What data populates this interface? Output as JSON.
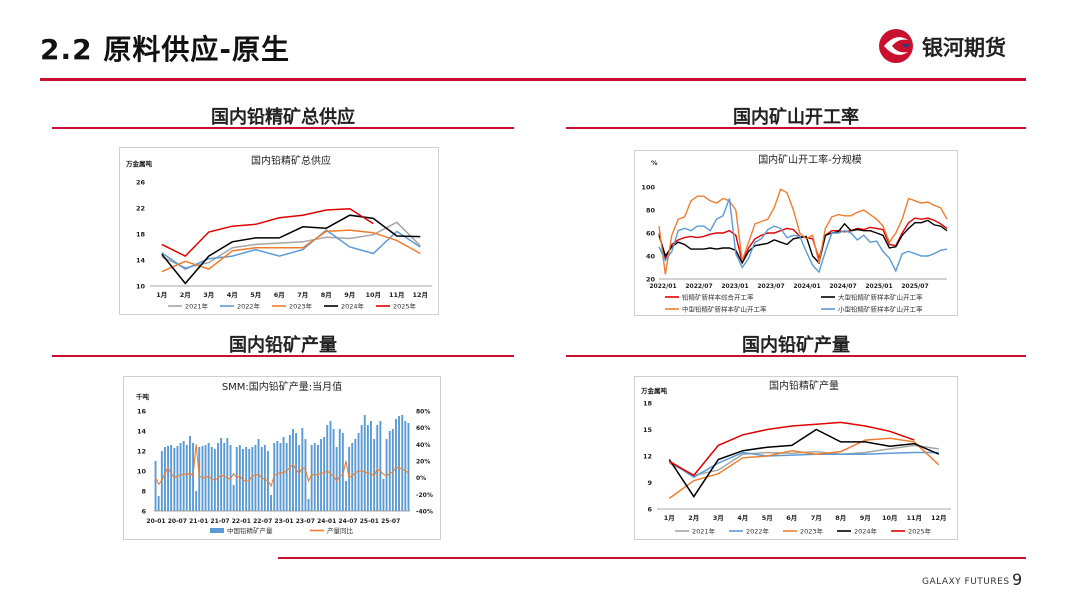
{
  "header": {
    "title": "2.2 原料供应-原生",
    "brand": "银河期货"
  },
  "panels": {
    "p1": {
      "title": "国内铅精矿总供应"
    },
    "p2": {
      "title": "国内矿山开工率"
    },
    "p3": {
      "title": "国内铅矿产量"
    },
    "p4": {
      "title": "国内铅矿产量"
    }
  },
  "footer": {
    "brand": "GALAXY FUTURES",
    "page": "9"
  },
  "chart_data": [
    {
      "id": "c1",
      "type": "line",
      "title": "国内铅精矿总供应",
      "ylabel": "万金属吨",
      "ylim": [
        10,
        26
      ],
      "yticks": [
        10,
        14,
        18,
        22,
        26
      ],
      "categories": [
        "1月",
        "2月",
        "3月",
        "4月",
        "5月",
        "6月",
        "7月",
        "8月",
        "9月",
        "10月",
        "11月",
        "12月"
      ],
      "series": [
        {
          "name": "2021年",
          "color": "#a6a6a6",
          "values": [
            14.5,
            12.8,
            13.6,
            15.9,
            16.4,
            16.6,
            16.8,
            17.5,
            17.3,
            17.9,
            19.8,
            16.2
          ]
        },
        {
          "name": "2022年",
          "color": "#5b9bd5",
          "values": [
            15.1,
            12.6,
            14.2,
            14.6,
            15.6,
            14.6,
            15.6,
            18.6,
            16.0,
            15.0,
            18.4,
            16.0
          ]
        },
        {
          "name": "2023年",
          "color": "#ed7d31",
          "values": [
            12.2,
            13.8,
            12.6,
            15.4,
            15.9,
            15.9,
            15.9,
            18.4,
            18.6,
            18.2,
            17.0,
            15.0
          ]
        },
        {
          "name": "2024年",
          "color": "#000000",
          "values": [
            14.9,
            10.4,
            14.6,
            16.8,
            17.4,
            17.4,
            19.1,
            18.9,
            20.9,
            20.4,
            17.7,
            17.6
          ]
        },
        {
          "name": "2025年",
          "color": "#e00000",
          "values": [
            16.4,
            14.6,
            18.3,
            19.2,
            19.5,
            20.5,
            20.9,
            21.7,
            21.9,
            19.6,
            null,
            null
          ]
        }
      ]
    },
    {
      "id": "c2",
      "type": "line",
      "title": "国内矿山开工率-分规模",
      "ylabel": "%",
      "ylim": [
        20,
        100
      ],
      "yticks": [
        20,
        40,
        60,
        80,
        100
      ],
      "xticks": [
        "2022/01",
        "2022/07",
        "2023/01",
        "2023/07",
        "2024/01",
        "2024/07",
        "2025/01",
        "2025/07"
      ],
      "series": [
        {
          "name": "铅精矿新样本综合开工率",
          "color": "#e00000",
          "values": [
            60,
            38,
            50,
            54,
            56,
            57,
            56,
            57,
            59,
            60,
            60,
            62,
            58,
            35,
            47,
            55,
            58,
            60,
            60,
            62,
            64,
            63,
            57,
            56,
            55,
            38,
            58,
            62,
            62,
            61,
            62,
            64,
            63,
            65,
            64,
            63,
            50,
            49,
            60,
            69,
            73,
            72,
            73,
            71,
            68,
            64
          ]
        },
        {
          "name": "大型铅精矿新样本矿山开工率",
          "color": "#000000",
          "values": [
            58,
            40,
            48,
            52,
            50,
            46,
            46,
            46,
            47,
            46,
            47,
            47,
            45,
            34,
            44,
            49,
            50,
            51,
            54,
            52,
            50,
            55,
            56,
            57,
            40,
            34,
            58,
            60,
            61,
            68,
            62,
            63,
            62,
            62,
            60,
            58,
            47,
            48,
            58,
            64,
            69,
            69,
            71,
            67,
            66,
            62
          ]
        },
        {
          "name": "中型铅精矿新样本矿山开工率",
          "color": "#ed7d31",
          "values": [
            66,
            24,
            58,
            72,
            74,
            88,
            92,
            92,
            88,
            86,
            90,
            88,
            80,
            36,
            52,
            68,
            70,
            72,
            82,
            98,
            95,
            80,
            60,
            55,
            58,
            34,
            64,
            74,
            76,
            75,
            75,
            78,
            80,
            76,
            72,
            66,
            52,
            60,
            72,
            90,
            88,
            86,
            87,
            84,
            82,
            72
          ]
        },
        {
          "name": "小型铅精矿新样本矿山开工率",
          "color": "#5b9bd5",
          "values": [
            48,
            36,
            44,
            62,
            64,
            62,
            66,
            66,
            62,
            72,
            75,
            90,
            42,
            30,
            38,
            52,
            55,
            63,
            66,
            64,
            56,
            58,
            57,
            44,
            32,
            26,
            44,
            60,
            60,
            62,
            60,
            54,
            58,
            52,
            53,
            44,
            38,
            27,
            42,
            44,
            42,
            40,
            40,
            42,
            45,
            46
          ]
        }
      ]
    },
    {
      "id": "c3",
      "type": "bar",
      "title": "SMM:国内铅矿产量:当月值",
      "ylabel": "千吨",
      "ylim": [
        6,
        16
      ],
      "yticks": [
        6,
        8,
        10,
        12,
        14,
        16
      ],
      "y2lim": [
        -40,
        80
      ],
      "y2ticks": [
        "-40%",
        "-20%",
        "0%",
        "20%",
        "40%",
        "60%",
        "80%"
      ],
      "xticks": [
        "20-01",
        "20-07",
        "21-01",
        "21-07",
        "22-01",
        "22-07",
        "23-01",
        "23-07",
        "24-01",
        "24-07",
        "25-01",
        "25-07"
      ],
      "series": [
        {
          "name": "中国铅精矿产量",
          "color": "#5b9bd5",
          "values": [
            11.0,
            7.5,
            12.0,
            12.4,
            12.5,
            12.6,
            12.3,
            12.5,
            12.8,
            13.0,
            12.6,
            13.5,
            12.8,
            8.0,
            12.4,
            12.5,
            12.6,
            12.8,
            12.4,
            12.2,
            12.8,
            13.3,
            12.8,
            13.3,
            12.6,
            8.6,
            12.4,
            12.6,
            12.2,
            12.4,
            12.2,
            12.4,
            12.6,
            13.2,
            12.4,
            12.6,
            12.0,
            7.6,
            12.8,
            13.0,
            12.8,
            13.4,
            12.8,
            13.6,
            14.2,
            13.8,
            12.6,
            14.3,
            13.2,
            7.2,
            12.6,
            12.8,
            12.6,
            13.2,
            13.4,
            14.6,
            15.0,
            14.2,
            12.4,
            14.2,
            13.8,
            9.0,
            12.4,
            12.8,
            13.2,
            13.8,
            14.6,
            15.6,
            14.6,
            15.0,
            13.2,
            14.6,
            15.0,
            9.2,
            13.2,
            14.0,
            14.2,
            15.2,
            15.5,
            15.6,
            15.0,
            14.8
          ]
        },
        {
          "name": "产量同比",
          "color": "#ed7d31",
          "values": [
            0,
            -8,
            -3,
            5,
            12,
            5,
            0,
            2,
            3,
            5,
            3,
            6,
            2,
            40,
            2,
            0,
            0,
            2,
            -2,
            -3,
            0,
            3,
            2,
            0,
            -2,
            5,
            0,
            2,
            -3,
            -4,
            -4,
            2,
            3,
            4,
            0,
            -2,
            -4,
            -10,
            2,
            5,
            6,
            6,
            8,
            12,
            16,
            10,
            5,
            12,
            10,
            -4,
            4,
            3,
            4,
            5,
            6,
            8,
            5,
            2,
            -4,
            2,
            4,
            20,
            0,
            2,
            6,
            8,
            8,
            7,
            5,
            5,
            2,
            10,
            8,
            4,
            2,
            5,
            7,
            12,
            12,
            10,
            8,
            6
          ]
        }
      ]
    },
    {
      "id": "c4",
      "type": "line",
      "title": "国内铅精矿产量",
      "ylabel": "万金属吨",
      "ylim": [
        6,
        18
      ],
      "yticks": [
        6,
        9,
        12,
        15,
        18
      ],
      "categories": [
        "1月",
        "2月",
        "3月",
        "4月",
        "5月",
        "6月",
        "7月",
        "8月",
        "9月",
        "10月",
        "11月",
        "12月"
      ],
      "series": [
        {
          "name": "2021年",
          "color": "#a6a6a6",
          "values": [
            11.2,
            9.8,
            10.4,
            12.2,
            12.4,
            12.3,
            12.5,
            12.2,
            12.4,
            12.8,
            13.2,
            12.8
          ]
        },
        {
          "name": "2022年",
          "color": "#5b9bd5",
          "values": [
            11.4,
            9.6,
            11.2,
            12.4,
            12.0,
            12.1,
            12.2,
            12.2,
            12.2,
            12.3,
            12.4,
            12.4
          ]
        },
        {
          "name": "2023年",
          "color": "#ed7d31",
          "values": [
            7.2,
            9.2,
            10.0,
            11.8,
            12.0,
            12.6,
            12.2,
            12.5,
            13.8,
            14.0,
            13.6,
            11.0
          ]
        },
        {
          "name": "2024年",
          "color": "#000000",
          "values": [
            11.6,
            7.4,
            11.6,
            12.6,
            13.0,
            13.2,
            15.0,
            13.6,
            13.6,
            13.1,
            13.4,
            12.2
          ]
        },
        {
          "name": "2025年",
          "color": "#e00000",
          "values": [
            11.4,
            9.8,
            13.2,
            14.4,
            15.0,
            15.4,
            15.6,
            15.8,
            15.4,
            14.8,
            13.8,
            null
          ]
        }
      ]
    }
  ]
}
